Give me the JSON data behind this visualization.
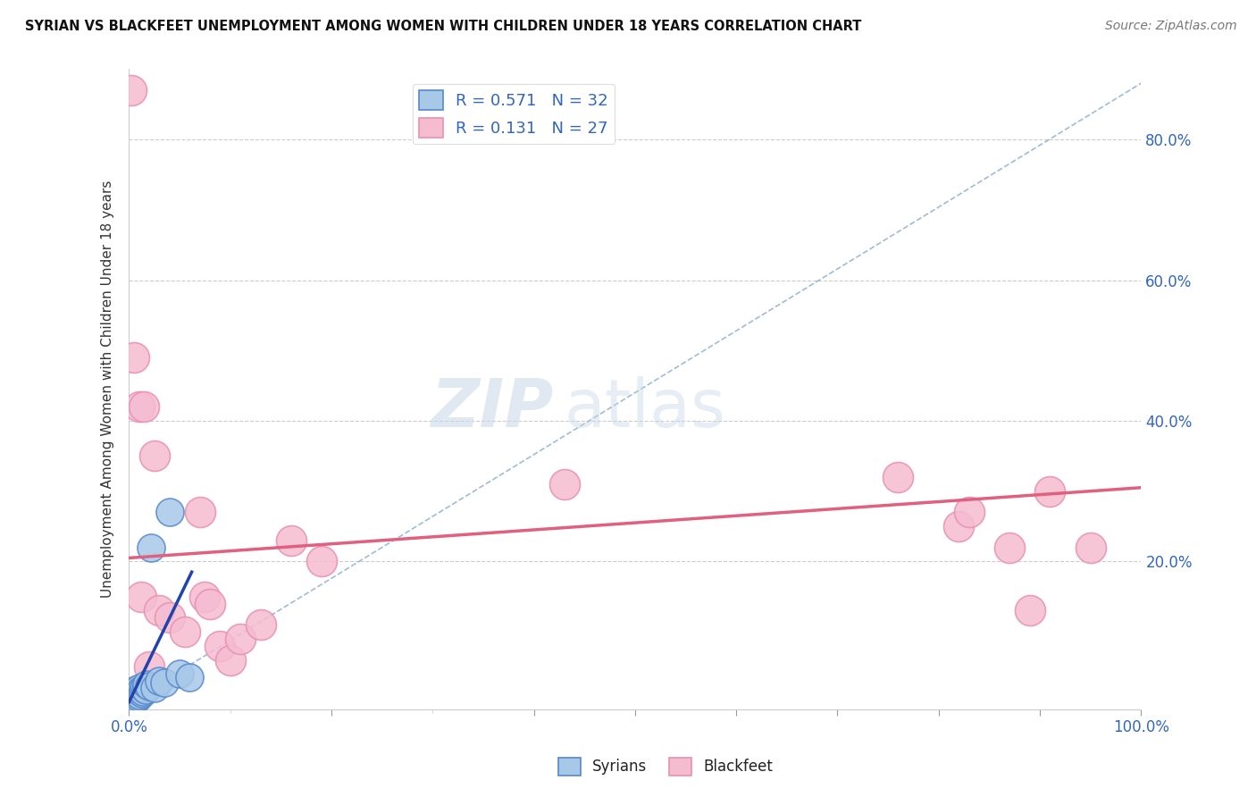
{
  "title": "SYRIAN VS BLACKFEET UNEMPLOYMENT AMONG WOMEN WITH CHILDREN UNDER 18 YEARS CORRELATION CHART",
  "source": "Source: ZipAtlas.com",
  "ylabel": "Unemployment Among Women with Children Under 18 years",
  "ytick_labels": [
    "20.0%",
    "40.0%",
    "60.0%",
    "80.0%"
  ],
  "ytick_values": [
    0.2,
    0.4,
    0.6,
    0.8
  ],
  "xlim": [
    0,
    1.0
  ],
  "ylim": [
    -0.01,
    0.9
  ],
  "legend_r1_val": "0.571",
  "legend_n1_val": "32",
  "legend_r2_val": "0.131",
  "legend_n2_val": "27",
  "watermark_zip": "ZIP",
  "watermark_atlas": "atlas",
  "syrian_color": "#a8c8e8",
  "blackfeet_color": "#f5bcd0",
  "syrian_edge": "#5588cc",
  "blackfeet_edge": "#e890b0",
  "syrian_trend_color": "#2244aa",
  "blackfeet_trend_color": "#e06080",
  "ref_line_color": "#88aacc",
  "background_color": "#ffffff",
  "syrian_points_x": [
    0.0,
    0.0,
    0.0,
    0.003,
    0.003,
    0.004,
    0.005,
    0.005,
    0.006,
    0.006,
    0.007,
    0.007,
    0.008,
    0.008,
    0.009,
    0.01,
    0.01,
    0.011,
    0.012,
    0.013,
    0.014,
    0.015,
    0.016,
    0.017,
    0.02,
    0.022,
    0.025,
    0.03,
    0.035,
    0.04,
    0.05,
    0.06
  ],
  "syrian_points_y": [
    0.0,
    0.005,
    0.01,
    0.002,
    0.008,
    0.004,
    0.002,
    0.01,
    0.005,
    0.015,
    0.008,
    0.018,
    0.005,
    0.012,
    0.007,
    0.01,
    0.02,
    0.015,
    0.018,
    0.012,
    0.015,
    0.02,
    0.018,
    0.025,
    0.022,
    0.22,
    0.02,
    0.03,
    0.028,
    0.27,
    0.04,
    0.035
  ],
  "blackfeet_points_x": [
    0.002,
    0.005,
    0.01,
    0.012,
    0.015,
    0.02,
    0.025,
    0.03,
    0.04,
    0.055,
    0.07,
    0.075,
    0.08,
    0.09,
    0.1,
    0.11,
    0.13,
    0.16,
    0.19,
    0.43,
    0.76,
    0.82,
    0.83,
    0.87,
    0.89,
    0.91,
    0.95
  ],
  "blackfeet_points_y": [
    0.87,
    0.49,
    0.42,
    0.15,
    0.42,
    0.05,
    0.35,
    0.13,
    0.12,
    0.1,
    0.27,
    0.15,
    0.14,
    0.08,
    0.06,
    0.09,
    0.11,
    0.23,
    0.2,
    0.31,
    0.32,
    0.25,
    0.27,
    0.22,
    0.13,
    0.3,
    0.22
  ],
  "syrian_trend_x": [
    0.0,
    0.062
  ],
  "syrian_trend_y": [
    0.0,
    0.185
  ],
  "blackfeet_trend_x": [
    0.0,
    1.0
  ],
  "blackfeet_trend_y": [
    0.205,
    0.305
  ],
  "ref_line_x": [
    0.0,
    1.0
  ],
  "ref_line_y": [
    0.0,
    0.88
  ]
}
